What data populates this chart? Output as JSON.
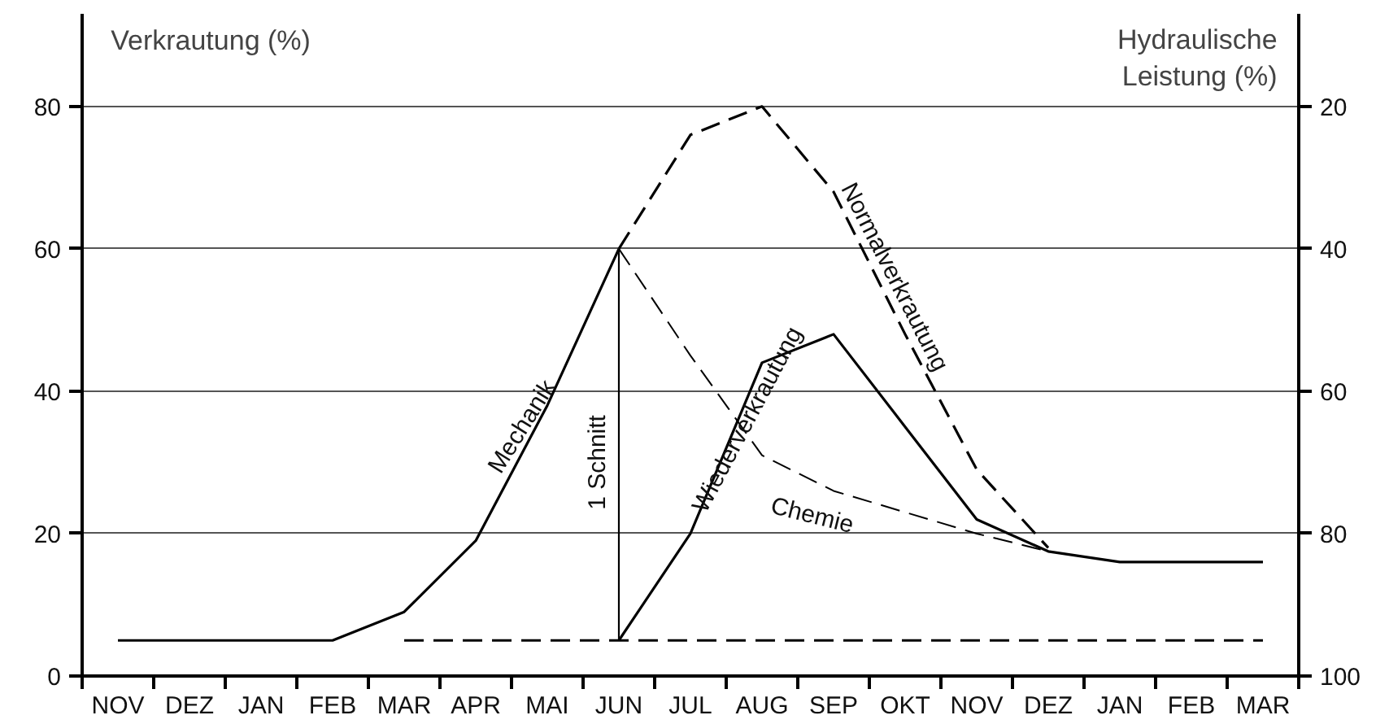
{
  "chart_data": {
    "type": "line",
    "ylabel": "Verkrautung (%)",
    "y2label": "Hydraulische Leistung (%)",
    "categories": [
      "NOV",
      "DEZ",
      "JAN",
      "FEB",
      "MAR",
      "APR",
      "MAI",
      "JUN",
      "JUL",
      "AUG",
      "SEP",
      "OKT",
      "NOV",
      "DEZ",
      "JAN",
      "FEB",
      "MAR"
    ],
    "ylim": [
      0,
      93
    ],
    "y2lim": [
      100,
      7
    ],
    "yticks": [
      0,
      20,
      40,
      60,
      80
    ],
    "y2ticks": [
      100,
      80,
      60,
      40,
      20
    ],
    "grid": "y",
    "series": [
      {
        "name": "Mechanik",
        "color": "#000000",
        "line_style": "solid",
        "values": [
          5,
          5,
          5,
          5,
          9,
          19,
          38,
          60,
          null,
          null,
          null,
          null,
          null,
          null,
          null,
          null,
          null
        ]
      },
      {
        "name": "1 Schnitt",
        "type": "bar",
        "color": "#000000",
        "values": [
          null,
          null,
          null,
          null,
          null,
          null,
          null,
          55,
          null,
          null,
          null,
          null,
          null,
          null,
          null,
          null,
          null
        ],
        "base": [
          null,
          null,
          null,
          null,
          null,
          null,
          null,
          5,
          null,
          null,
          null,
          null,
          null,
          null,
          null,
          null,
          null
        ]
      },
      {
        "name": "Wiederverkrautung",
        "color": "#000000",
        "line_style": "solid",
        "values": [
          null,
          null,
          null,
          null,
          null,
          null,
          null,
          5,
          20,
          44,
          48,
          35,
          22,
          17.5,
          16,
          16,
          16
        ]
      },
      {
        "name": "Normalverkrautung",
        "color": "#000000",
        "line_style": "dashed",
        "values": [
          null,
          null,
          null,
          null,
          null,
          null,
          null,
          60,
          76,
          80,
          68,
          48,
          29,
          18,
          null,
          null,
          null
        ]
      },
      {
        "name": "Chemie",
        "color": "#000000",
        "line_style": "dashed",
        "values": [
          null,
          null,
          null,
          null,
          null,
          null,
          null,
          60,
          45,
          31,
          26,
          23,
          20,
          17.5,
          null,
          null,
          null
        ]
      },
      {
        "color": "#000000",
        "line_style": "dashed",
        "values": [
          null,
          null,
          null,
          null,
          5,
          5,
          5,
          5,
          5,
          5,
          5,
          5,
          5,
          5,
          5,
          5,
          5
        ]
      }
    ]
  }
}
